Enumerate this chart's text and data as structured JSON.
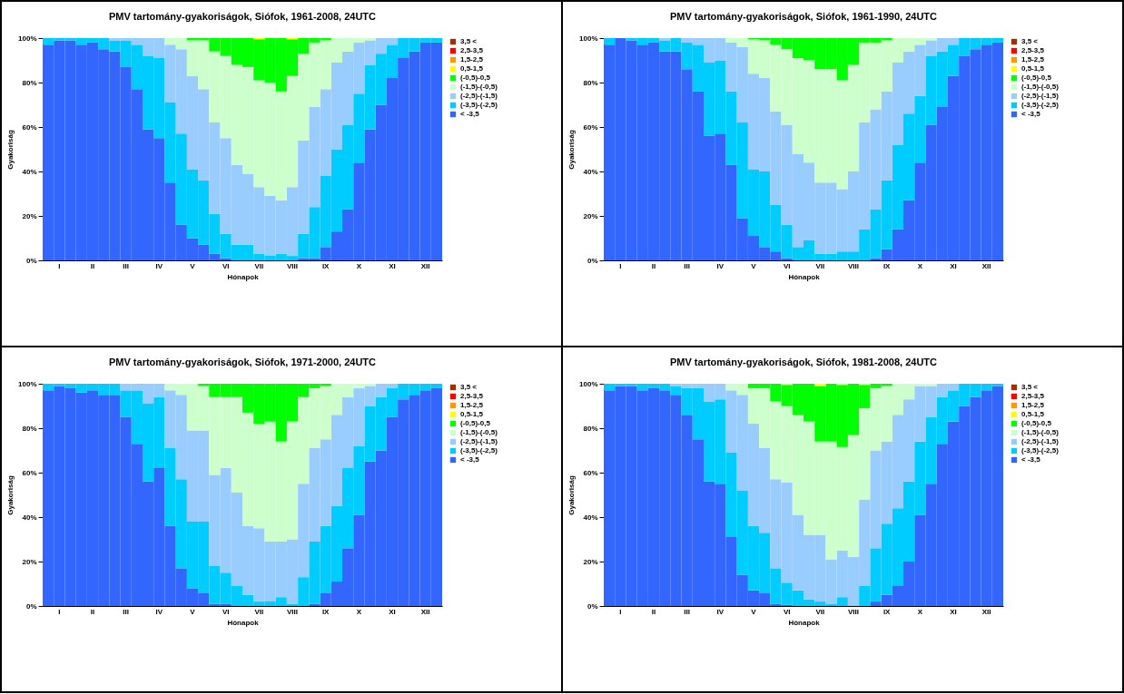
{
  "chart_data": [
    {
      "type": "bar",
      "stacked": true,
      "title": "PMV tartomány-gyakoriságok, Siófok, 1961-2008, 24UTC",
      "xlabel": "Hónapok",
      "ylabel": "Gyakoriság",
      "legend": "right",
      "categories": [
        null,
        "I",
        null,
        null,
        "II",
        null,
        null,
        "III",
        null,
        null,
        "IV",
        null,
        null,
        "V",
        null,
        null,
        "VI",
        null,
        null,
        "VII",
        null,
        null,
        "VIII",
        null,
        null,
        "IX",
        null,
        null,
        "X",
        null,
        null,
        "XI",
        null,
        null,
        "XII",
        null
      ],
      "ylim": [
        0,
        100
      ],
      "yticks": [
        {
          "value": 0,
          "label": "0%"
        },
        {
          "value": 20,
          "label": "20%"
        },
        {
          "value": 40,
          "label": "40%"
        },
        {
          "value": 60,
          "label": "60%"
        },
        {
          "value": 80,
          "label": "80%"
        },
        {
          "value": 100,
          "label": "100%"
        }
      ],
      "series": [
        {
          "name": "< -3,5",
          "color": "#3366ff",
          "values": [
            97,
            99,
            99,
            97,
            98,
            95,
            94,
            87,
            77,
            59,
            55,
            35,
            16,
            10,
            7,
            3,
            1,
            0,
            0,
            0,
            0,
            0,
            0,
            1,
            1,
            6,
            13,
            23,
            44,
            59,
            70,
            82,
            91,
            94,
            98,
            98
          ]
        },
        {
          "name": "(-3,5)-(-2,5)",
          "color": "#00ccff",
          "values": [
            3,
            1,
            1,
            3,
            2,
            5,
            5,
            12,
            20,
            33,
            36,
            36,
            41,
            31,
            29,
            18,
            11,
            7,
            7,
            3,
            2,
            3,
            2,
            11,
            23,
            32,
            37,
            38,
            31,
            29,
            23,
            15,
            9,
            6,
            2,
            2
          ]
        },
        {
          "name": "(-2,5)-(-1,5)",
          "color": "#99ccff",
          "values": [
            0,
            0,
            0,
            0,
            0,
            0,
            1,
            1,
            3,
            8,
            9,
            26,
            38,
            42,
            41,
            41,
            43,
            36,
            32,
            30,
            27,
            24,
            31,
            42,
            45,
            39,
            39,
            33,
            23,
            11,
            7,
            3,
            0,
            0,
            0,
            0
          ]
        },
        {
          "name": "(-1,5)-(-0,5)",
          "color": "#ccffcc",
          "values": [
            0,
            0,
            0,
            0,
            0,
            0,
            0,
            0,
            0,
            0,
            0,
            3,
            5,
            16,
            22,
            32,
            37,
            45,
            48,
            48,
            51,
            49,
            50,
            39,
            29,
            22,
            11,
            6,
            2,
            1,
            0,
            0,
            0,
            0,
            0,
            0
          ]
        },
        {
          "name": "(-0,5)-0,5",
          "color": "#00ff00",
          "values": [
            0,
            0,
            0,
            0,
            0,
            0,
            0,
            0,
            0,
            0,
            0,
            0,
            0,
            1,
            1,
            6,
            8,
            12,
            13,
            18.5,
            20,
            24,
            16.5,
            7,
            2,
            1,
            0,
            0,
            0,
            0,
            0,
            0,
            0,
            0,
            0,
            0
          ]
        },
        {
          "name": "0,5-1,5",
          "color": "#ffff00",
          "values": [
            0,
            0,
            0,
            0,
            0,
            0,
            0,
            0,
            0,
            0,
            0,
            0,
            0,
            0,
            0,
            0,
            0,
            0,
            0,
            0.5,
            0,
            0,
            0.5,
            0,
            0,
            0,
            0,
            0,
            0,
            0,
            0,
            0,
            0,
            0,
            0,
            0
          ]
        },
        {
          "name": "1,5-2,5",
          "color": "#ff9900",
          "values": [
            0,
            0,
            0,
            0,
            0,
            0,
            0,
            0,
            0,
            0,
            0,
            0,
            0,
            0,
            0,
            0,
            0,
            0,
            0,
            0,
            0,
            0,
            0,
            0,
            0,
            0,
            0,
            0,
            0,
            0,
            0,
            0,
            0,
            0,
            0,
            0
          ]
        },
        {
          "name": "2,5-3,5",
          "color": "#ff0000",
          "values": [
            0,
            0,
            0,
            0,
            0,
            0,
            0,
            0,
            0,
            0,
            0,
            0,
            0,
            0,
            0,
            0,
            0,
            0,
            0,
            0,
            0,
            0,
            0,
            0,
            0,
            0,
            0,
            0,
            0,
            0,
            0,
            0,
            0,
            0,
            0,
            0
          ]
        },
        {
          "name": "3,5 <",
          "color": "#993300",
          "values": [
            0,
            0,
            0,
            0,
            0,
            0,
            0,
            0,
            0,
            0,
            0,
            0,
            0,
            0,
            0,
            0,
            0,
            0,
            0,
            0,
            0,
            0,
            0,
            0,
            0,
            0,
            0,
            0,
            0,
            0,
            0,
            0,
            0,
            0,
            0,
            0
          ]
        }
      ]
    },
    {
      "type": "bar",
      "stacked": true,
      "title": "PMV tartomány-gyakoriságok, Siófok, 1961-1990, 24UTC",
      "xlabel": "Hónapok",
      "ylabel": "Gyakoriság",
      "legend": "right",
      "categories": [
        null,
        "I",
        null,
        null,
        "II",
        null,
        null,
        "III",
        null,
        null,
        "IV",
        null,
        null,
        "V",
        null,
        null,
        "VI",
        null,
        null,
        "VII",
        null,
        null,
        "VIII",
        null,
        null,
        "IX",
        null,
        null,
        "X",
        null,
        null,
        "XI",
        null,
        null,
        "XII",
        null
      ],
      "ylim": [
        0,
        100
      ],
      "yticks": [
        {
          "value": 0,
          "label": "0%"
        },
        {
          "value": 20,
          "label": "20%"
        },
        {
          "value": 40,
          "label": "40%"
        },
        {
          "value": 60,
          "label": "60%"
        },
        {
          "value": 80,
          "label": "80%"
        },
        {
          "value": 100,
          "label": "100%"
        }
      ],
      "series": [
        {
          "name": "< -3,5",
          "color": "#3366ff",
          "values": [
            97,
            100,
            99,
            97,
            98,
            94,
            94,
            86,
            76,
            56,
            57,
            43,
            19,
            11,
            6,
            4,
            1,
            0,
            0,
            0,
            0,
            0,
            0,
            0,
            1,
            5,
            14,
            27,
            44,
            61,
            69,
            83,
            92,
            95,
            97,
            98
          ]
        },
        {
          "name": "(-3,5)-(-2,5)",
          "color": "#00ccff",
          "values": [
            3,
            0,
            1,
            3,
            2,
            5,
            6,
            12,
            21,
            33,
            33,
            33,
            43,
            30,
            34,
            21,
            15,
            6,
            9,
            3,
            3,
            4,
            4,
            14,
            22,
            31,
            38,
            39,
            30,
            31,
            25,
            14,
            8,
            5,
            3,
            2
          ]
        },
        {
          "name": "(-2,5)-(-1,5)",
          "color": "#99ccff",
          "values": [
            0,
            0,
            0,
            0,
            0,
            1,
            0,
            2,
            3,
            11,
            10,
            22,
            34,
            43,
            42,
            42,
            45,
            42,
            35,
            32,
            32,
            28,
            36,
            48,
            45,
            40,
            37,
            28,
            23,
            7,
            6,
            3,
            0,
            0,
            0,
            0
          ]
        },
        {
          "name": "(-1,5)-(-0,5)",
          "color": "#ccffcc",
          "values": [
            0,
            0,
            0,
            0,
            0,
            0,
            0,
            0,
            0,
            0,
            0,
            2,
            4,
            15.5,
            17,
            30,
            34,
            43,
            46,
            51,
            51,
            49,
            48,
            36,
            30,
            23,
            11,
            6,
            3,
            1,
            0,
            0,
            0,
            0,
            0,
            0
          ]
        },
        {
          "name": "(-0,5)-0,5",
          "color": "#00ff00",
          "values": [
            0,
            0,
            0,
            0,
            0,
            0,
            0,
            0,
            0,
            0,
            0,
            0,
            0,
            0.5,
            1,
            3,
            5,
            9,
            10,
            14,
            14,
            19,
            12,
            2,
            2,
            1,
            0,
            0,
            0,
            0,
            0,
            0,
            0,
            0,
            0,
            0
          ]
        },
        {
          "name": "0,5-1,5",
          "color": "#ffff00",
          "values": [
            0,
            0,
            0,
            0,
            0,
            0,
            0,
            0,
            0,
            0,
            0,
            0,
            0,
            0,
            0,
            0,
            0,
            0,
            0,
            0,
            0,
            0,
            0,
            0,
            0,
            0,
            0,
            0,
            0,
            0,
            0,
            0,
            0,
            0,
            0,
            0
          ]
        },
        {
          "name": "1,5-2,5",
          "color": "#ff9900",
          "values": [
            0,
            0,
            0,
            0,
            0,
            0,
            0,
            0,
            0,
            0,
            0,
            0,
            0,
            0,
            0,
            0,
            0,
            0,
            0,
            0,
            0,
            0,
            0,
            0,
            0,
            0,
            0,
            0,
            0,
            0,
            0,
            0,
            0,
            0,
            0,
            0
          ]
        },
        {
          "name": "2,5-3,5",
          "color": "#ff0000",
          "values": [
            0,
            0,
            0,
            0,
            0,
            0,
            0,
            0,
            0,
            0,
            0,
            0,
            0,
            0,
            0,
            0,
            0,
            0,
            0,
            0,
            0,
            0,
            0,
            0,
            0,
            0,
            0,
            0,
            0,
            0,
            0,
            0,
            0,
            0,
            0,
            0
          ]
        },
        {
          "name": "3,5 <",
          "color": "#993300",
          "values": [
            0,
            0,
            0,
            0,
            0,
            0,
            0,
            0,
            0,
            0,
            0,
            0,
            0,
            0,
            0,
            0,
            0,
            0,
            0,
            0,
            0,
            0,
            0,
            0,
            0,
            0,
            0,
            0,
            0,
            0,
            0,
            0,
            0,
            0,
            0,
            0
          ]
        }
      ]
    },
    {
      "type": "bar",
      "stacked": true,
      "title": "PMV tartomány-gyakoriságok, Siófok, 1971-2000, 24UTC",
      "xlabel": "Hónapok",
      "ylabel": "Gyakoriság",
      "legend": "right",
      "categories": [
        null,
        "I",
        null,
        null,
        "II",
        null,
        null,
        "III",
        null,
        null,
        "IV",
        null,
        null,
        "V",
        null,
        null,
        "VI",
        null,
        null,
        "VII",
        null,
        null,
        "VIII",
        null,
        null,
        "IX",
        null,
        null,
        "X",
        null,
        null,
        "XI",
        null,
        null,
        "XII",
        null
      ],
      "ylim": [
        0,
        100
      ],
      "yticks": [
        {
          "value": 0,
          "label": "0%"
        },
        {
          "value": 20,
          "label": "20%"
        },
        {
          "value": 40,
          "label": "40%"
        },
        {
          "value": 60,
          "label": "60%"
        },
        {
          "value": 80,
          "label": "80%"
        },
        {
          "value": 100,
          "label": "100%"
        }
      ],
      "series": [
        {
          "name": "< -3,5",
          "color": "#3366ff",
          "values": [
            97,
            99,
            98,
            96,
            97,
            95,
            95,
            85,
            73,
            56,
            62,
            36,
            17,
            8,
            6,
            1,
            1,
            0,
            0,
            0,
            0,
            0,
            0,
            0,
            1,
            6,
            11,
            26,
            41,
            65,
            70,
            85,
            93,
            95,
            97,
            98
          ]
        },
        {
          "name": "(-3,5)-(-2,5)",
          "color": "#00ccff",
          "values": [
            3,
            1,
            2,
            4,
            3,
            5,
            5,
            12,
            24,
            35,
            32,
            35,
            40,
            30,
            32,
            17,
            14,
            9,
            5,
            2,
            2,
            4,
            1,
            13,
            28,
            30,
            34,
            36,
            31,
            25,
            24,
            13,
            7,
            5,
            3,
            2
          ]
        },
        {
          "name": "(-2,5)-(-1,5)",
          "color": "#99ccff",
          "values": [
            0,
            0,
            0,
            0,
            0,
            0,
            0,
            3,
            3,
            9,
            6,
            26,
            38,
            41,
            41,
            41,
            47,
            42,
            31,
            33,
            27,
            25,
            29,
            42,
            42,
            39,
            41,
            32,
            26,
            9,
            6,
            2,
            0,
            0,
            0,
            0
          ]
        },
        {
          "name": "(-1,5)-(-0,5)",
          "color": "#ccffcc",
          "values": [
            0,
            0,
            0,
            0,
            0,
            0,
            0,
            0,
            0,
            0,
            0,
            3,
            5,
            21,
            20,
            35,
            32,
            43,
            51,
            47,
            54,
            45,
            53,
            39,
            27,
            24,
            14,
            6,
            2,
            1,
            0,
            0,
            0,
            0,
            0,
            0
          ]
        },
        {
          "name": "(-0,5)-0,5",
          "color": "#00ff00",
          "values": [
            0,
            0,
            0,
            0,
            0,
            0,
            0,
            0,
            0,
            0,
            0,
            0,
            0,
            0,
            1,
            6,
            6,
            6,
            13,
            18,
            17,
            26,
            17,
            6,
            2,
            1,
            0,
            0,
            0,
            0,
            0,
            0,
            0,
            0,
            0,
            0
          ]
        },
        {
          "name": "0,5-1,5",
          "color": "#ffff00",
          "values": [
            0,
            0,
            0,
            0,
            0,
            0,
            0,
            0,
            0,
            0,
            0,
            0,
            0,
            0,
            0,
            0,
            0,
            0,
            0,
            0,
            0,
            0,
            0,
            0,
            0,
            0,
            0,
            0,
            0,
            0,
            0,
            0,
            0,
            0,
            0,
            0
          ]
        },
        {
          "name": "1,5-2,5",
          "color": "#ff9900",
          "values": [
            0,
            0,
            0,
            0,
            0,
            0,
            0,
            0,
            0,
            0,
            0,
            0,
            0,
            0,
            0,
            0,
            0,
            0,
            0,
            0,
            0,
            0,
            0,
            0,
            0,
            0,
            0,
            0,
            0,
            0,
            0,
            0,
            0,
            0,
            0,
            0
          ]
        },
        {
          "name": "2,5-3,5",
          "color": "#ff0000",
          "values": [
            0,
            0,
            0,
            0,
            0,
            0,
            0,
            0,
            0,
            0,
            0,
            0,
            0,
            0,
            0,
            0,
            0,
            0,
            0,
            0,
            0,
            0,
            0,
            0,
            0,
            0,
            0,
            0,
            0,
            0,
            0,
            0,
            0,
            0,
            0,
            0
          ]
        },
        {
          "name": "3,5 <",
          "color": "#993300",
          "values": [
            0,
            0,
            0,
            0,
            0,
            0,
            0,
            0,
            0,
            0,
            0,
            0,
            0,
            0,
            0,
            0,
            0,
            0,
            0,
            0,
            0,
            0,
            0,
            0,
            0,
            0,
            0,
            0,
            0,
            0,
            0,
            0,
            0,
            0,
            0,
            0
          ]
        }
      ]
    },
    {
      "type": "bar",
      "stacked": true,
      "title": "PMV tartomány-gyakoriságok, Siófok, 1981-2008, 24UTC",
      "xlabel": "Hónapok",
      "ylabel": "Gyakoriság",
      "legend": "right",
      "categories": [
        null,
        "I",
        null,
        null,
        "II",
        null,
        null,
        "III",
        null,
        null,
        "IV",
        null,
        null,
        "V",
        null,
        null,
        "VI",
        null,
        null,
        "VII",
        null,
        null,
        "VIII",
        null,
        null,
        "IX",
        null,
        null,
        "X",
        null,
        null,
        "XI",
        null,
        null,
        "XII",
        null
      ],
      "ylim": [
        0,
        100
      ],
      "yticks": [
        {
          "value": 0,
          "label": "0%"
        },
        {
          "value": 20,
          "label": "20%"
        },
        {
          "value": 40,
          "label": "40%"
        },
        {
          "value": 60,
          "label": "60%"
        },
        {
          "value": 80,
          "label": "80%"
        },
        {
          "value": 100,
          "label": "100%"
        }
      ],
      "series": [
        {
          "name": "< -3,5",
          "color": "#3366ff",
          "values": [
            97,
            99,
            99,
            97,
            98,
            97,
            95,
            86,
            75,
            56,
            55,
            31,
            14,
            7,
            6,
            1,
            0.5,
            0,
            0,
            0,
            0,
            0,
            0,
            0,
            2,
            5,
            9,
            20,
            41,
            55,
            73,
            83,
            90,
            94,
            97,
            99
          ]
        },
        {
          "name": "(-3,5)-(-2,5)",
          "color": "#00ccff",
          "values": [
            3,
            1,
            1,
            3,
            2,
            3,
            4,
            12,
            23,
            36,
            38,
            38,
            38,
            29,
            27,
            16,
            10,
            7,
            3,
            2,
            1,
            4,
            0,
            9,
            24,
            32,
            35,
            36,
            33,
            30,
            21,
            14,
            10,
            6,
            3,
            1
          ]
        },
        {
          "name": "(-2,5)-(-1,5)",
          "color": "#99ccff",
          "values": [
            0,
            0,
            0,
            0,
            0,
            0,
            1,
            2,
            2,
            8,
            7,
            28,
            43,
            46,
            38,
            40,
            45,
            34,
            29,
            30,
            20,
            21,
            22,
            39,
            44,
            37,
            42,
            37,
            25,
            14,
            6,
            3,
            0,
            0,
            0,
            0
          ]
        },
        {
          "name": "(-1,5)-(-0,5)",
          "color": "#ccffcc",
          "values": [
            0,
            0,
            0,
            0,
            0,
            0,
            0,
            0,
            0,
            0,
            0,
            3,
            5,
            16,
            27,
            35,
            34.5,
            45,
            51,
            42,
            53,
            46.5,
            55,
            41,
            28,
            25,
            14,
            7,
            1,
            1,
            0,
            0,
            0,
            0,
            0,
            0
          ]
        },
        {
          "name": "(-0,5)-0,5",
          "color": "#00ff00",
          "values": [
            0,
            0,
            0,
            0,
            0,
            0,
            0,
            0,
            0,
            0,
            0,
            0,
            0,
            2,
            2,
            8,
            9.5,
            14,
            17,
            25,
            26,
            28,
            23,
            10.5,
            2,
            1,
            0,
            0,
            0,
            0,
            0,
            0,
            0,
            0,
            0,
            0
          ]
        },
        {
          "name": "0,5-1,5",
          "color": "#ffff00",
          "values": [
            0,
            0,
            0,
            0,
            0,
            0,
            0,
            0,
            0,
            0,
            0,
            0,
            0,
            0,
            0,
            0,
            0.5,
            0,
            0,
            1,
            0,
            0.5,
            0,
            0.5,
            0,
            0,
            0,
            0,
            0,
            0,
            0,
            0,
            0,
            0,
            0,
            0
          ]
        },
        {
          "name": "1,5-2,5",
          "color": "#ff9900",
          "values": [
            0,
            0,
            0,
            0,
            0,
            0,
            0,
            0,
            0,
            0,
            0,
            0,
            0,
            0,
            0,
            0,
            0,
            0,
            0,
            0,
            0,
            0,
            0,
            0,
            0,
            0,
            0,
            0,
            0,
            0,
            0,
            0,
            0,
            0,
            0,
            0
          ]
        },
        {
          "name": "2,5-3,5",
          "color": "#ff0000",
          "values": [
            0,
            0,
            0,
            0,
            0,
            0,
            0,
            0,
            0,
            0,
            0,
            0,
            0,
            0,
            0,
            0,
            0,
            0,
            0,
            0,
            0,
            0,
            0,
            0,
            0,
            0,
            0,
            0,
            0,
            0,
            0,
            0,
            0,
            0,
            0,
            0
          ]
        },
        {
          "name": "3,5 <",
          "color": "#993300",
          "values": [
            0,
            0,
            0,
            0,
            0,
            0,
            0,
            0,
            0,
            0,
            0,
            0,
            0,
            0,
            0,
            0,
            0,
            0,
            0,
            0,
            0,
            0,
            0,
            0,
            0,
            0,
            0,
            0,
            0,
            0,
            0,
            0,
            0,
            0,
            0,
            0
          ]
        }
      ]
    }
  ]
}
